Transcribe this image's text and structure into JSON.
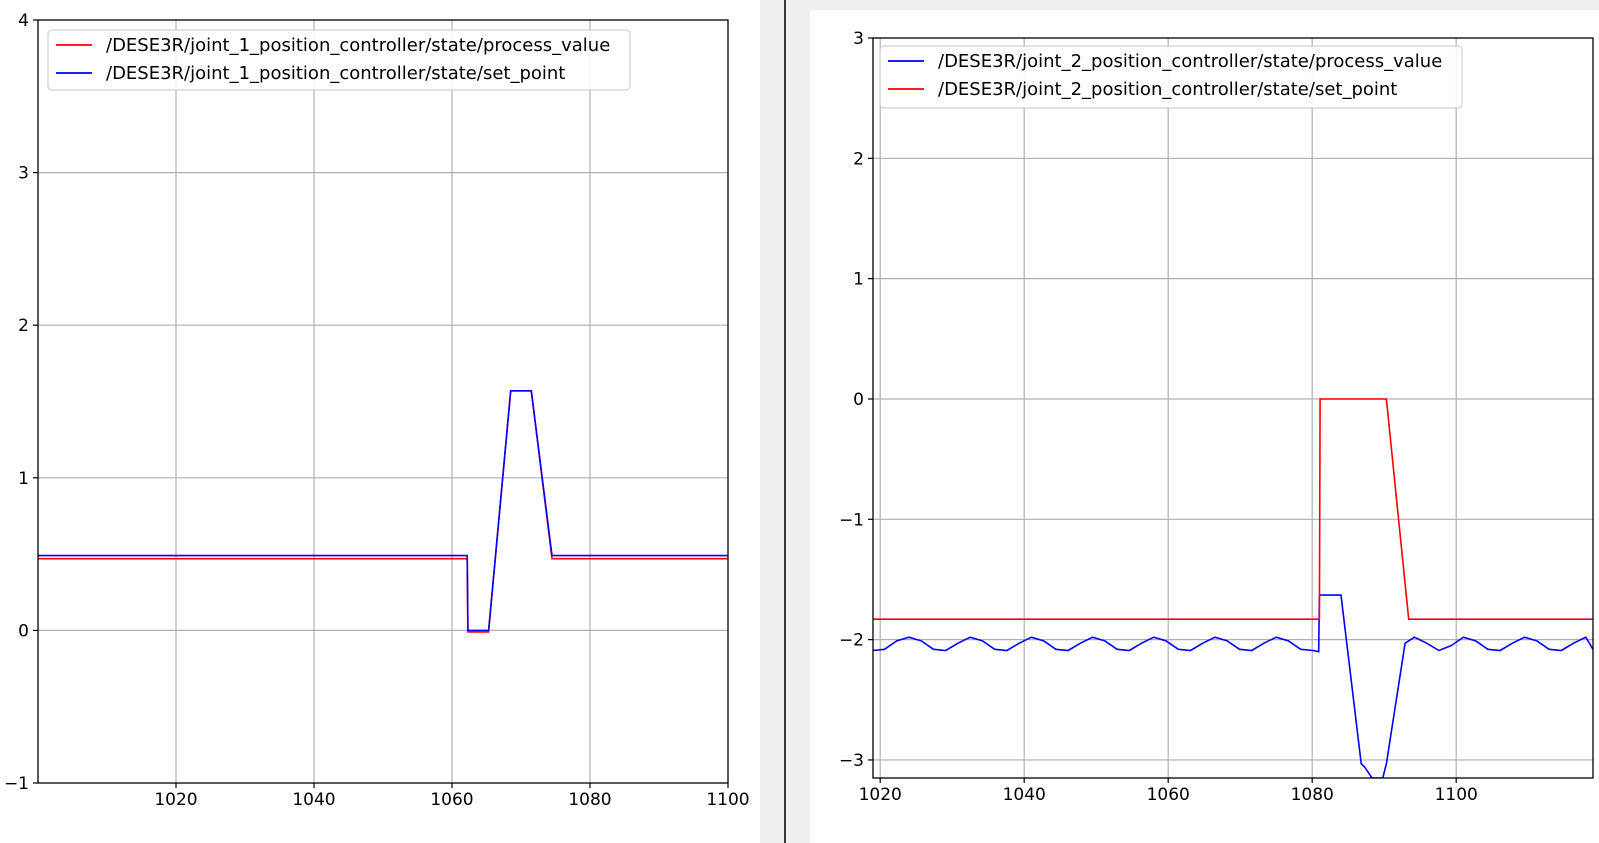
{
  "chart_data": [
    {
      "type": "line",
      "title": "",
      "xlabel": "",
      "ylabel": "",
      "xlim": [
        1000,
        1100
      ],
      "ylim": [
        -1,
        4
      ],
      "xticks": [
        1020,
        1040,
        1060,
        1080,
        1100
      ],
      "xtick_labels": [
        "1020",
        "1040",
        "1060",
        "1080",
        "1100"
      ],
      "yticks": [
        -1,
        0,
        1,
        2,
        3,
        4
      ],
      "ytick_labels": [
        "−1",
        "0",
        "1",
        "2",
        "3",
        "4"
      ],
      "grid": true,
      "legend_position": "top-left",
      "series": [
        {
          "name": "/DESE3R/joint_1_position_controller/state/process_value",
          "color": "#ff0000",
          "x": [
            1000,
            1062.2,
            1062.3,
            1065.3,
            1068.5,
            1071.5,
            1074.5,
            1100
          ],
          "y": [
            0.47,
            0.47,
            -0.01,
            -0.01,
            1.57,
            1.57,
            0.47,
            0.47
          ]
        },
        {
          "name": "/DESE3R/joint_1_position_controller/state/set_point",
          "color": "#0000ff",
          "x": [
            1000,
            1062.2,
            1062.3,
            1065.3,
            1068.5,
            1071.5,
            1074.5,
            1100
          ],
          "y": [
            0.49,
            0.49,
            0.0,
            0.0,
            1.57,
            1.57,
            0.49,
            0.49
          ]
        }
      ]
    },
    {
      "type": "line",
      "title": "",
      "xlabel": "",
      "ylabel": "",
      "xlim": [
        1019,
        1119
      ],
      "ylim": [
        -3.15,
        3
      ],
      "xticks": [
        1020,
        1040,
        1060,
        1080,
        1100
      ],
      "xtick_labels": [
        "1020",
        "1040",
        "1060",
        "1080",
        "1100"
      ],
      "yticks": [
        -3,
        -2,
        -1,
        0,
        1,
        2,
        3
      ],
      "ytick_labels": [
        "−3",
        "−2",
        "−1",
        "0",
        "1",
        "2",
        "3"
      ],
      "grid": true,
      "legend_position": "top-left",
      "series": [
        {
          "name": "/DESE3R/joint_2_position_controller/state/process_value",
          "color": "#0000ff",
          "x": [
            1019,
            1020.6,
            1022.3,
            1024.0,
            1025.7,
            1027.4,
            1029.1,
            1030.8,
            1032.5,
            1034.2,
            1035.9,
            1037.6,
            1039.3,
            1041.0,
            1042.7,
            1044.4,
            1046.1,
            1047.8,
            1049.5,
            1051.2,
            1052.9,
            1054.6,
            1056.3,
            1058.0,
            1059.7,
            1061.4,
            1063.1,
            1064.8,
            1066.5,
            1068.2,
            1069.9,
            1071.6,
            1073.3,
            1075.0,
            1076.7,
            1078.4,
            1080.1,
            1080.9,
            1081.0,
            1084.0,
            1086.8,
            1087.3,
            1088.3,
            1089.8,
            1090.3,
            1092.9,
            1094.2,
            1095.9,
            1097.6,
            1099.3,
            1101.0,
            1102.7,
            1104.4,
            1106.1,
            1107.8,
            1109.5,
            1111.2,
            1112.9,
            1114.6,
            1116.3,
            1118.0,
            1119
          ],
          "y": [
            -2.09,
            -2.08,
            -2.01,
            -1.98,
            -2.01,
            -2.08,
            -2.09,
            -2.03,
            -1.98,
            -2.01,
            -2.08,
            -2.09,
            -2.03,
            -1.98,
            -2.01,
            -2.08,
            -2.09,
            -2.03,
            -1.98,
            -2.01,
            -2.08,
            -2.09,
            -2.03,
            -1.98,
            -2.01,
            -2.08,
            -2.09,
            -2.03,
            -1.98,
            -2.01,
            -2.08,
            -2.09,
            -2.03,
            -1.98,
            -2.01,
            -2.08,
            -2.09,
            -2.1,
            -1.63,
            -1.63,
            -3.03,
            -3.06,
            -3.15,
            -3.15,
            -3.03,
            -2.03,
            -1.98,
            -2.03,
            -2.09,
            -2.05,
            -1.98,
            -2.01,
            -2.08,
            -2.09,
            -2.03,
            -1.98,
            -2.01,
            -2.08,
            -2.09,
            -2.03,
            -1.98,
            -2.08
          ]
        },
        {
          "name": "/DESE3R/joint_2_position_controller/state/set_point",
          "color": "#ff0000",
          "x": [
            1019,
            1081.0,
            1081.1,
            1090.3,
            1093.4,
            1119
          ],
          "y": [
            -1.83,
            -1.83,
            0.0,
            0.0,
            -1.83,
            -1.83
          ]
        }
      ]
    }
  ]
}
